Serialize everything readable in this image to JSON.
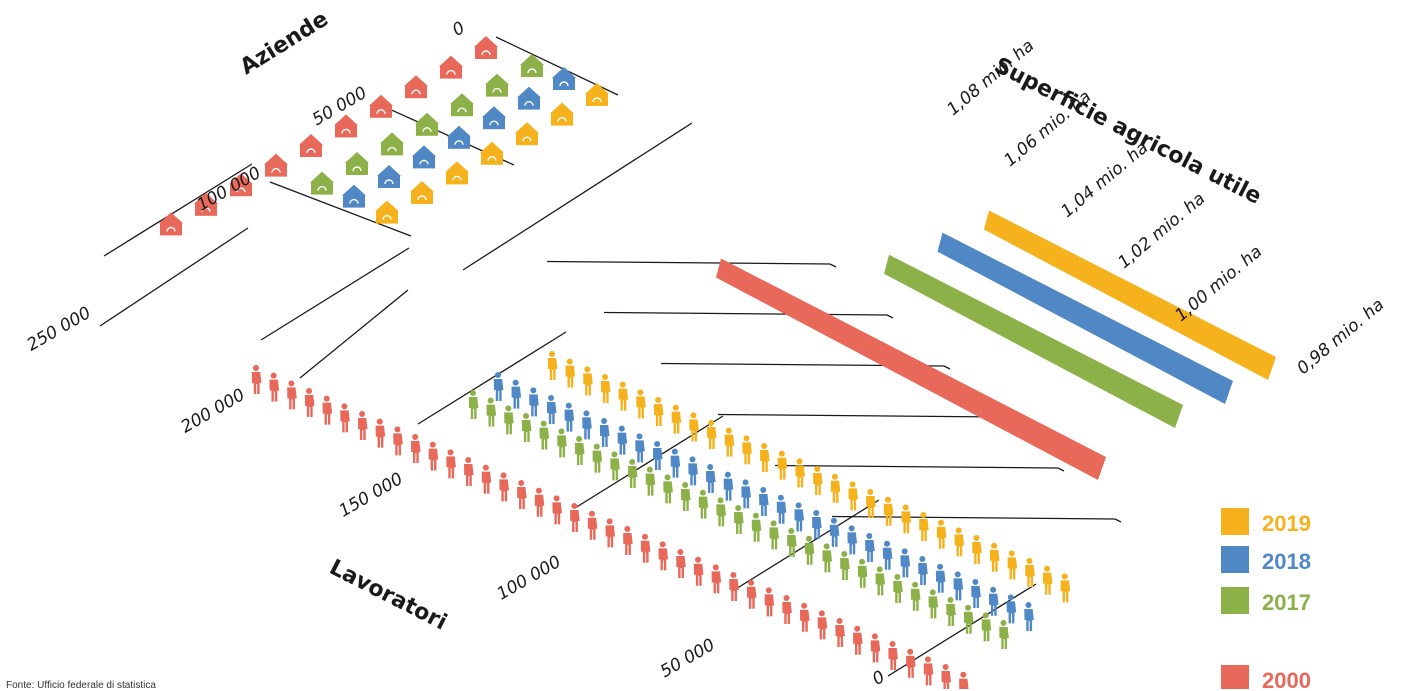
{
  "source_note": "Fonte: Ufficio federale di statistica",
  "colors": {
    "2019": "#f6b21c",
    "2018": "#4f88c5",
    "2017": "#8cb149",
    "2000": "#e8685a"
  },
  "chart_data": {
    "type": "isometric pictogram",
    "years": [
      "2019",
      "2018",
      "2017",
      "2000"
    ],
    "legend": {
      "position": "bottom-right",
      "entries": [
        {
          "year": "2019",
          "label": "2019",
          "color": "#f6b21c"
        },
        {
          "year": "2018",
          "label": "2018",
          "color": "#4f88c5"
        },
        {
          "year": "2017",
          "label": "2017",
          "color": "#8cb149"
        },
        {
          "year": "2000",
          "label": "2000",
          "color": "#e8685a"
        }
      ]
    },
    "sections": {
      "aziende": {
        "title": "Aziende",
        "ticks": [
          "0",
          "50 000",
          "100 000"
        ],
        "unit_per_icon": 7000,
        "values": {
          "2019": 50000,
          "2018": 51000,
          "2017": 51600,
          "2000": 70500
        }
      },
      "superficie": {
        "title": "Superficie agricola utile",
        "ticks": [
          "0,98 mio. ha",
          "1,00 mio. ha",
          "1,02 mio. ha",
          "1,04 mio. ha",
          "1,06 mio. ha",
          "1,08 mio. ha"
        ],
        "values": {
          "2019": 1.044,
          "2018": 1.045,
          "2017": 1.046,
          "2000": 1.072
        }
      },
      "lavoratori": {
        "title": "Lavoratori",
        "ticks": [
          "0",
          "50 000",
          "100 000",
          "150 000",
          "200 000",
          "250 000"
        ],
        "unit_per_icon": 5000,
        "values": {
          "2019": 150000,
          "2018": 153000,
          "2017": 154000,
          "2000": 204000
        }
      }
    }
  }
}
